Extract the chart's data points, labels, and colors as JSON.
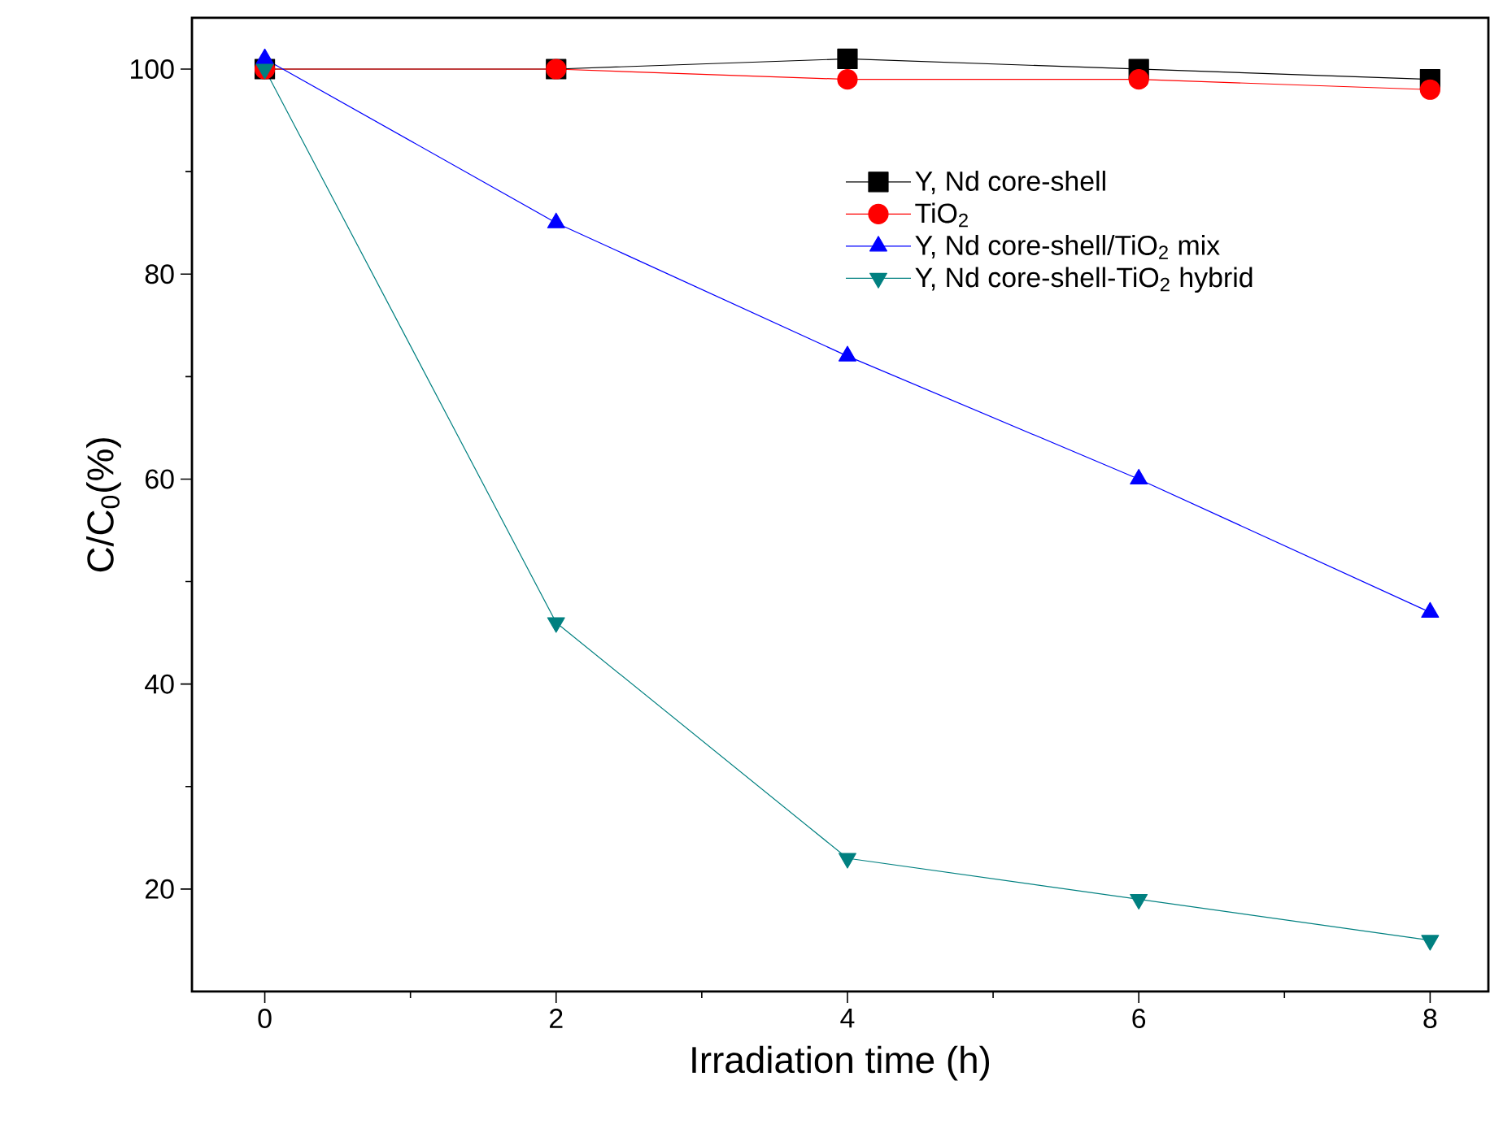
{
  "chart_data": {
    "type": "line",
    "xlabel": "Irradiation time (h)",
    "ylabel": "C/C$_{0}$(%)",
    "x": [
      0,
      2,
      4,
      6,
      8
    ],
    "series": [
      {
        "name": "Y, Nd core-shell",
        "color": "#000000",
        "marker": "square",
        "values": [
          100,
          100,
          101,
          100,
          99
        ]
      },
      {
        "name": "TiO$_{2}$",
        "color": "#ff0000",
        "marker": "circle",
        "values": [
          100,
          100,
          99,
          99,
          98
        ]
      },
      {
        "name": "Y, Nd core-shell/TiO$_{2}$ mix",
        "color": "#0000ff",
        "marker": "triangle",
        "values": [
          101,
          85,
          72,
          60,
          47
        ]
      },
      {
        "name": "Y, Nd core-shell-TiO$_{2}$ hybrid",
        "color": "#008080",
        "marker": "triangle down",
        "values": [
          100,
          46,
          23,
          19,
          15
        ]
      }
    ],
    "xlim": [
      -0.5,
      8.4
    ],
    "ylim": [
      10,
      105
    ],
    "xticks": [
      0,
      2,
      4,
      6,
      8
    ],
    "yticks": [
      20,
      40,
      60,
      80,
      100
    ],
    "legend": "top right",
    "grid": false,
    "line_style": "solid"
  }
}
